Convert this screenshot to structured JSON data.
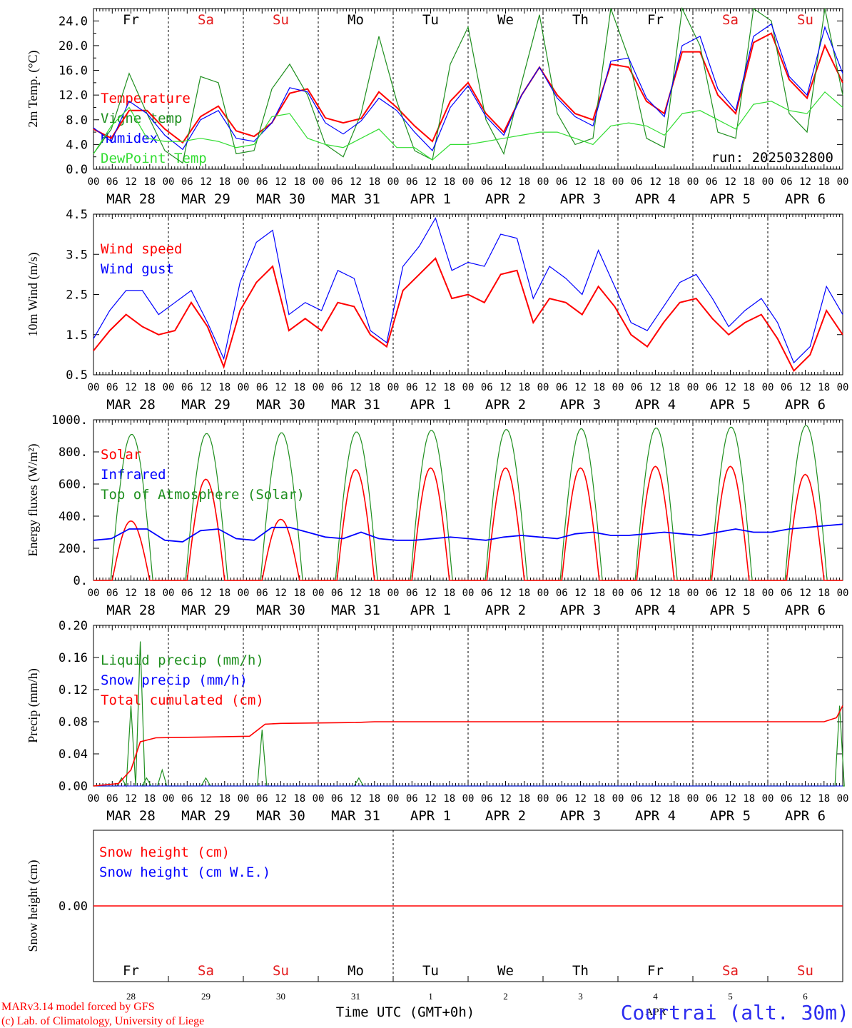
{
  "run_label": "run: 2025032800",
  "day_names": [
    {
      "text": "Fr",
      "color": "#000000"
    },
    {
      "text": "Sa",
      "color": "#e41a1c"
    },
    {
      "text": "Su",
      "color": "#e41a1c"
    },
    {
      "text": "Mo",
      "color": "#000000"
    },
    {
      "text": "Tu",
      "color": "#000000"
    },
    {
      "text": "We",
      "color": "#000000"
    },
    {
      "text": "Th",
      "color": "#000000"
    },
    {
      "text": "Fr",
      "color": "#000000"
    },
    {
      "text": "Sa",
      "color": "#e41a1c"
    },
    {
      "text": "Su",
      "color": "#e41a1c"
    }
  ],
  "hour_labels": [
    "00",
    "06",
    "12",
    "18"
  ],
  "date_labels": [
    "MAR 28",
    "MAR 29",
    "MAR 30",
    "MAR 31",
    "APR  1",
    "APR  2",
    "APR  3",
    "APR  4",
    "APR  5",
    "APR  6"
  ],
  "bottom_day_numbers": [
    "28",
    "29",
    "30",
    "31",
    "1",
    "2",
    "3",
    "4",
    "5",
    "6"
  ],
  "bottom_month_label": "APR",
  "x_axis_title": "Time UTC (GMT+0h)",
  "credits": [
    "MARv3.14 model forced by GFS",
    "(c) Lab. of Climatology, University of Liege"
  ],
  "station": "Courtrai (alt. 30m)",
  "colors": {
    "red": "#ff0000",
    "green": "#1f8f1f",
    "blue": "#0000ff",
    "lightgreen": "#33dd33"
  },
  "chart_data": [
    {
      "type": "line",
      "ylabel": "2m Temp. (°C)",
      "ylim": [
        0,
        26
      ],
      "yticks": [
        "0.0",
        "4.0",
        "8.0",
        "12.0",
        "16.0",
        "20.0",
        "24.0"
      ],
      "x": "hours since 2025-03-28 00 UTC, every 6 h (0–240)",
      "series": [
        {
          "name": "Temperature",
          "color": "red",
          "values": [
            6.5,
            5.0,
            9.5,
            9.5,
            6.5,
            4.3,
            8.5,
            10.2,
            6.2,
            5.3,
            7.5,
            12.3,
            13.0,
            8.3,
            7.5,
            8.2,
            12.5,
            10.0,
            7.0,
            4.5,
            11.0,
            14.0,
            9.0,
            6.0,
            12.0,
            16.5,
            12.0,
            9.0,
            8.0,
            17.0,
            16.5,
            11.0,
            9.0,
            19.0,
            19.0,
            12.0,
            9.0,
            20.5,
            22.0,
            14.5,
            11.5,
            20.0,
            14.0
          ]
        },
        {
          "name": "Vigne temp",
          "color": "green",
          "values": [
            2.5,
            6.5,
            15.5,
            9.0,
            3.0,
            1.0,
            15.0,
            14.0,
            2.5,
            3.0,
            13.0,
            17.0,
            12.0,
            4.0,
            2.0,
            9.0,
            21.5,
            11.0,
            3.0,
            1.5,
            17.0,
            23.0,
            8.0,
            2.5,
            14.0,
            25.0,
            9.0,
            4.0,
            5.0,
            26.0,
            18.0,
            5.0,
            3.5,
            26.0,
            20.0,
            6.0,
            5.0,
            26.0,
            24.0,
            9.0,
            6.0,
            26.0,
            12.0
          ]
        },
        {
          "name": "Humidex",
          "color": "blue",
          "values": [
            6.7,
            4.5,
            11.0,
            9.0,
            5.5,
            3.2,
            8.0,
            9.5,
            5.0,
            4.5,
            7.5,
            13.2,
            12.5,
            7.5,
            5.7,
            7.8,
            11.5,
            9.5,
            6.0,
            3.0,
            10.0,
            13.5,
            8.5,
            5.5,
            12.0,
            16.5,
            11.5,
            8.5,
            7.0,
            17.5,
            18.0,
            11.5,
            8.5,
            20.0,
            21.5,
            13.0,
            9.5,
            21.5,
            23.5,
            15.0,
            12.0,
            23.0,
            15.5
          ]
        },
        {
          "name": "DewPoint Temp",
          "color": "lightgreen",
          "values": [
            2.5,
            7.0,
            10.0,
            5.0,
            4.5,
            4.5,
            5.0,
            4.5,
            3.5,
            4.0,
            8.5,
            9.0,
            5.0,
            4.0,
            3.5,
            5.0,
            6.5,
            3.5,
            3.5,
            1.5,
            4.0,
            4.0,
            4.5,
            5.0,
            5.5,
            6.0,
            6.0,
            5.0,
            4.0,
            7.0,
            7.5,
            7.0,
            5.5,
            9.0,
            9.5,
            8.0,
            6.5,
            10.5,
            11.0,
            9.5,
            9.0,
            12.5,
            10.0
          ]
        }
      ]
    },
    {
      "type": "line",
      "ylabel": "10m Wind (m/s)",
      "ylim": [
        0.5,
        4.5
      ],
      "yticks": [
        "0.5",
        "1.5",
        "2.5",
        "3.5",
        "4.5"
      ],
      "x": "hours since 2025-03-28 00 UTC, every 6 h (0–240)",
      "series": [
        {
          "name": "Wind speed",
          "color": "red",
          "values": [
            1.1,
            1.6,
            2.0,
            1.7,
            1.5,
            1.6,
            2.3,
            1.7,
            0.7,
            2.1,
            2.8,
            3.2,
            1.6,
            1.9,
            1.6,
            2.3,
            2.2,
            1.5,
            1.2,
            2.6,
            3.0,
            3.4,
            2.4,
            2.5,
            2.3,
            3.0,
            3.1,
            1.8,
            2.4,
            2.3,
            2.0,
            2.7,
            2.2,
            1.5,
            1.2,
            1.8,
            2.3,
            2.4,
            1.9,
            1.5,
            1.8,
            2.0,
            1.4,
            0.6,
            1.0,
            2.1,
            1.5
          ]
        },
        {
          "name": "Wind gust",
          "color": "blue",
          "values": [
            1.4,
            2.1,
            2.6,
            2.6,
            2.0,
            2.3,
            2.6,
            1.8,
            0.9,
            2.8,
            3.8,
            4.1,
            2.0,
            2.3,
            2.1,
            3.1,
            2.9,
            1.6,
            1.3,
            3.2,
            3.7,
            4.4,
            3.1,
            3.3,
            3.2,
            4.0,
            3.9,
            2.4,
            3.2,
            2.9,
            2.5,
            3.6,
            2.7,
            1.8,
            1.6,
            2.2,
            2.8,
            3.0,
            2.4,
            1.7,
            2.1,
            2.4,
            1.8,
            0.8,
            1.2,
            2.7,
            2.0
          ]
        }
      ]
    },
    {
      "type": "line",
      "ylabel": "Energy fluxes (W/m²)",
      "ylim": [
        0,
        1000
      ],
      "yticks": [
        "0.",
        "200.",
        "400.",
        "600.",
        "800.",
        "1000."
      ],
      "x": "hours since 2025-03-28 00 UTC",
      "series": [
        {
          "name": "Solar",
          "color": "red",
          "peaks_per_day": [
            370,
            630,
            380,
            690,
            700,
            700,
            700,
            710,
            710,
            660
          ]
        },
        {
          "name": "Infrared",
          "color": "blue",
          "values": [
            250,
            260,
            320,
            320,
            250,
            240,
            310,
            320,
            260,
            250,
            330,
            330,
            300,
            270,
            260,
            300,
            260,
            250,
            250,
            260,
            270,
            260,
            250,
            270,
            280,
            270,
            260,
            290,
            300,
            280,
            280,
            290,
            300,
            290,
            280,
            300,
            320,
            300,
            300,
            320,
            330,
            340,
            350
          ]
        },
        {
          "name": "Top of Atmosphere (Solar)",
          "color": "green",
          "peaks_per_day": [
            910,
            915,
            920,
            925,
            935,
            940,
            945,
            950,
            955,
            965
          ]
        }
      ]
    },
    {
      "type": "line",
      "ylabel": "Precip (mm/h)",
      "ylim": [
        0,
        0.2
      ],
      "yticks": [
        "0.00",
        "0.04",
        "0.08",
        "0.12",
        "0.16",
        "0.20"
      ],
      "x": "hours since 2025-03-28 00 UTC",
      "series": [
        {
          "name": "Liquid precip (mm/h)",
          "color": "green",
          "spikes": [
            [
              9,
              0.01
            ],
            [
              12,
              0.1
            ],
            [
              15,
              0.18
            ],
            [
              17,
              0.01
            ],
            [
              22,
              0.02
            ],
            [
              36,
              0.01
            ],
            [
              54,
              0.07
            ],
            [
              85,
              0.01
            ],
            [
              239,
              0.1
            ]
          ]
        },
        {
          "name": "Snow precip (mm/h)",
          "color": "blue",
          "values": [
            0
          ]
        },
        {
          "name": "Total cumulated (cm)",
          "color": "red",
          "steps": [
            [
              0,
              0
            ],
            [
              8,
              0.003
            ],
            [
              12,
              0.02
            ],
            [
              15,
              0.055
            ],
            [
              20,
              0.06
            ],
            [
              36,
              0.061
            ],
            [
              50,
              0.062
            ],
            [
              55,
              0.077
            ],
            [
              60,
              0.078
            ],
            [
              84,
              0.079
            ],
            [
              90,
              0.08
            ],
            [
              234,
              0.08
            ],
            [
              238,
              0.085
            ],
            [
              240,
              0.1
            ]
          ]
        }
      ]
    },
    {
      "type": "line",
      "ylabel": "Snow height (cm)",
      "ylim": [
        -0.5,
        0.5
      ],
      "yticks": [
        "0.00"
      ],
      "series": [
        {
          "name": "Snow height (cm)",
          "color": "red",
          "values": [
            0,
            0
          ]
        },
        {
          "name": "Snow height (cm W.E.)",
          "color": "blue",
          "values": [
            0,
            0
          ]
        }
      ]
    }
  ]
}
